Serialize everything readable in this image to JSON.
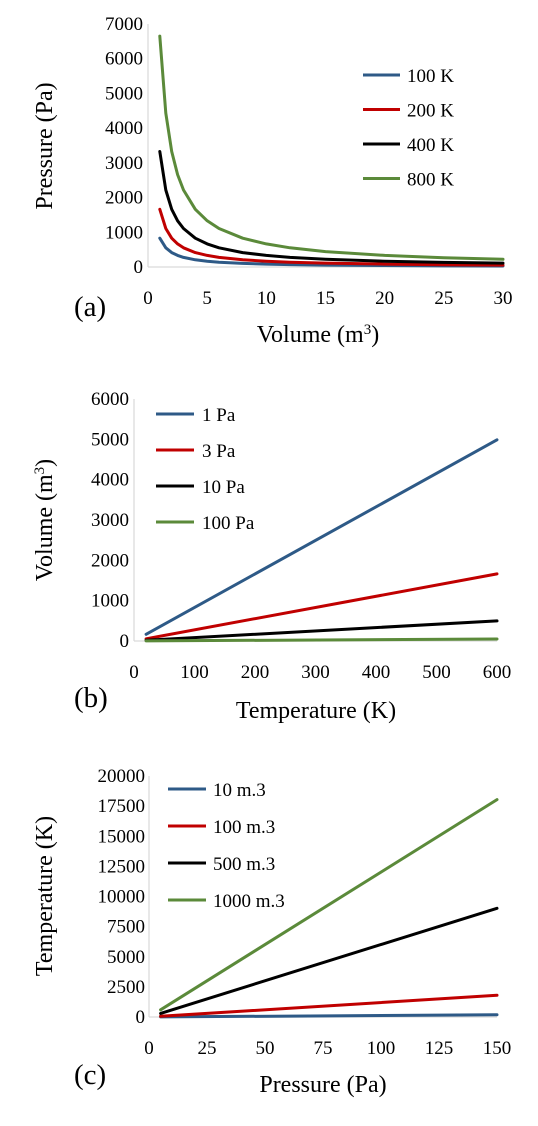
{
  "chart_data": [
    {
      "type": "line",
      "panel_label": "(a)",
      "xlabel": "Volume (m",
      "xlabel_sup": "3",
      "xlabel_suffix": ")",
      "ylabel": "Pressure (Pa)",
      "xlim": [
        0,
        30
      ],
      "ylim": [
        0,
        7000
      ],
      "x_ticks": [
        0,
        5,
        10,
        15,
        20,
        25,
        30
      ],
      "y_ticks": [
        0,
        1000,
        2000,
        3000,
        4000,
        5000,
        6000,
        7000
      ],
      "legend_position": "top-right",
      "x": [
        1,
        1.5,
        2,
        2.5,
        3,
        4,
        5,
        6,
        8,
        10,
        12,
        15,
        20,
        25,
        30
      ],
      "series": [
        {
          "name": "100 K",
          "color": "#2e5a87",
          "values": [
            831,
            554,
            416,
            333,
            277,
            208,
            166,
            139,
            104,
            83,
            69,
            55,
            42,
            33,
            28
          ]
        },
        {
          "name": "200 K",
          "color": "#c00000",
          "values": [
            1663,
            1109,
            831,
            665,
            554,
            416,
            333,
            277,
            208,
            166,
            139,
            111,
            83,
            67,
            55
          ]
        },
        {
          "name": "400 K",
          "color": "#000000",
          "values": [
            3326,
            2217,
            1663,
            1330,
            1109,
            831,
            665,
            554,
            416,
            333,
            277,
            222,
            166,
            133,
            111
          ]
        },
        {
          "name": "800 K",
          "color": "#5b8a3a",
          "values": [
            6651,
            4434,
            3326,
            2661,
            2217,
            1663,
            1330,
            1109,
            831,
            665,
            554,
            443,
            333,
            266,
            222
          ]
        }
      ]
    },
    {
      "type": "line",
      "panel_label": "(b)",
      "xlabel": "Temperature (K)",
      "ylabel": "Volume (m",
      "ylabel_sup": "3",
      "ylabel_suffix": ")",
      "xlim": [
        0,
        600
      ],
      "ylim": [
        0,
        6000
      ],
      "x_ticks": [
        0,
        100,
        200,
        300,
        400,
        500,
        600
      ],
      "y_ticks": [
        0,
        1000,
        2000,
        3000,
        4000,
        5000,
        6000
      ],
      "legend_position": "top-left",
      "x": [
        20,
        600
      ],
      "series": [
        {
          "name": "1 Pa",
          "color": "#2e5a87",
          "values": [
            166,
            4989
          ]
        },
        {
          "name": "3 Pa",
          "color": "#c00000",
          "values": [
            55,
            1663
          ]
        },
        {
          "name": "10 Pa",
          "color": "#000000",
          "values": [
            17,
            499
          ]
        },
        {
          "name": "100 Pa",
          "color": "#5b8a3a",
          "values": [
            2,
            50
          ]
        }
      ]
    },
    {
      "type": "line",
      "panel_label": "(c)",
      "xlabel": "Pressure (Pa)",
      "ylabel": "Temperature (K)",
      "xlim": [
        0,
        150
      ],
      "ylim": [
        0,
        20000
      ],
      "x_ticks": [
        0,
        25,
        50,
        75,
        100,
        125,
        150
      ],
      "y_ticks": [
        0,
        2500,
        5000,
        7500,
        10000,
        12500,
        15000,
        17500,
        20000
      ],
      "legend_position": "top-left",
      "x": [
        5,
        150
      ],
      "series": [
        {
          "name": "10 m.3",
          "color": "#2e5a87",
          "values": [
            6,
            180
          ]
        },
        {
          "name": "100 m.3",
          "color": "#c00000",
          "values": [
            60,
            1804
          ]
        },
        {
          "name": "500 m.3",
          "color": "#000000",
          "values": [
            301,
            9021
          ]
        },
        {
          "name": "1000 m.3",
          "color": "#5b8a3a",
          "values": [
            601,
            18042
          ]
        }
      ]
    }
  ]
}
